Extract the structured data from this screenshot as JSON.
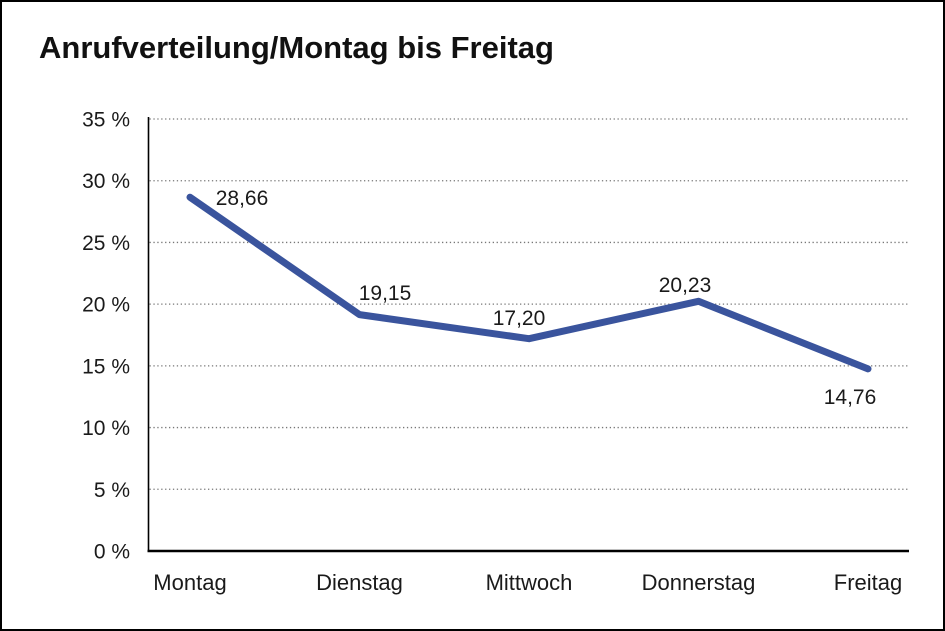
{
  "title": "Anrufverteilung/Montag bis Freitag",
  "colors": {
    "line": "#3A549D",
    "axis": "#000000",
    "grid": "#777777",
    "text": "#1a1a1a",
    "background": "#ffffff",
    "border": "#000000"
  },
  "chart_data": {
    "type": "line",
    "title": "Anrufverteilung/Montag bis Freitag",
    "categories": [
      "Montag",
      "Dienstag",
      "Mittwoch",
      "Donnerstag",
      "Freitag"
    ],
    "values": [
      28.66,
      19.15,
      17.2,
      20.23,
      14.76
    ],
    "value_labels": [
      "28,66",
      "19,15",
      "17,20",
      "20,23",
      "14,76"
    ],
    "yticks": [
      0,
      5,
      10,
      15,
      20,
      25,
      30,
      35
    ],
    "ytick_labels": [
      "0 %",
      "5 %",
      "10 %",
      "15 %",
      "20 %",
      "25 %",
      "30 %",
      "35 %"
    ],
    "ylim": [
      0,
      35
    ],
    "xlabel": "",
    "ylabel": "",
    "grid": "horizontal-dotted",
    "legend": "none"
  }
}
